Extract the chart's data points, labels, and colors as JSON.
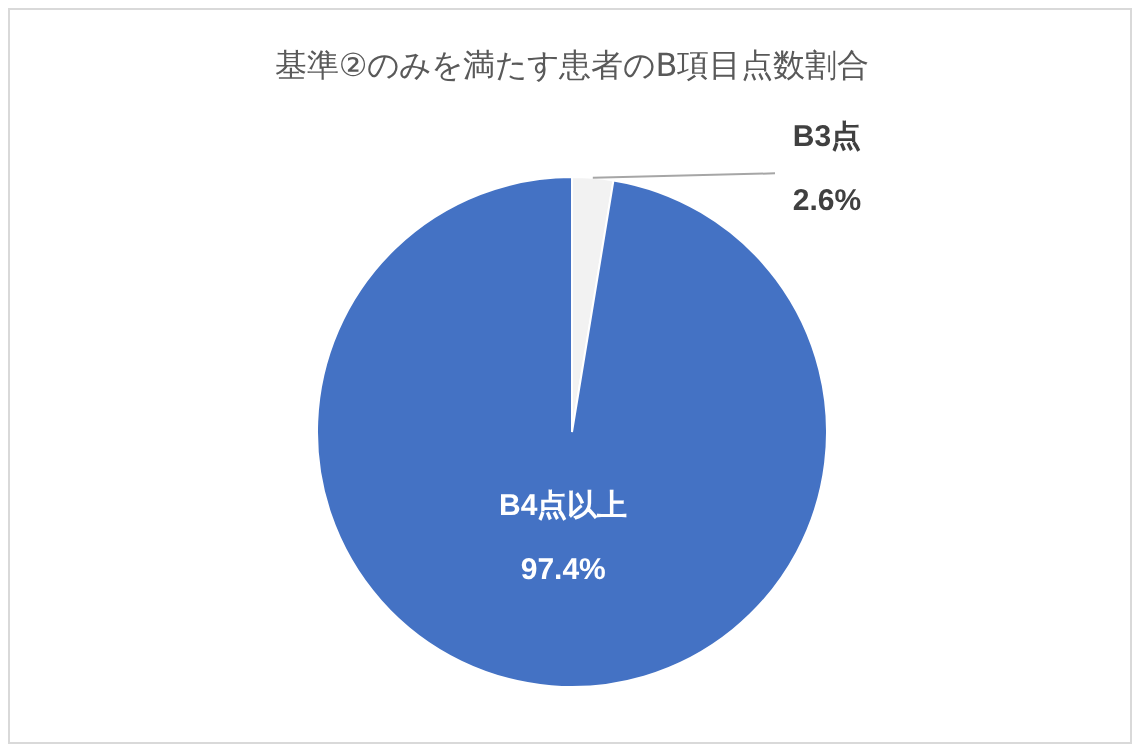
{
  "chart_data": {
    "type": "pie",
    "title": "基準②のみを満たす患者のB項目点数割合",
    "categories": [
      "B3点",
      "B4点以上"
    ],
    "values": [
      2.6,
      97.4
    ],
    "colors": [
      "#f2f2f2",
      "#4472c4"
    ],
    "value_labels": [
      "2.6%",
      "97.4%"
    ],
    "legend": false
  }
}
